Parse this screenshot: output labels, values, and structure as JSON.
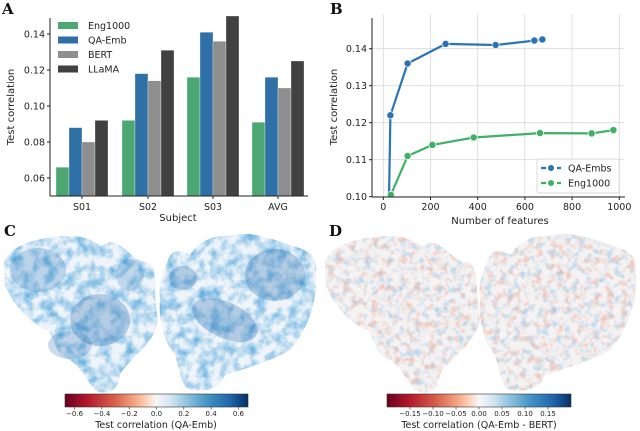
{
  "panels": {
    "A": {
      "letter": "A"
    },
    "B": {
      "letter": "B"
    },
    "C": {
      "letter": "C"
    },
    "D": {
      "letter": "D"
    }
  },
  "chart_data": [
    {
      "id": "A",
      "type": "bar",
      "title": "",
      "xlabel": "Subject",
      "ylabel": "Test correlation",
      "categories": [
        "S01",
        "S02",
        "S03",
        "AVG"
      ],
      "ylim": [
        0.05,
        0.15
      ],
      "yticks": [
        0.06,
        0.08,
        0.1,
        0.12,
        0.14
      ],
      "ytick_labels": [
        "0.06",
        "0.08",
        "0.10",
        "0.12",
        "0.14"
      ],
      "legend_position": "top-left",
      "grid": false,
      "series": [
        {
          "name": "Eng1000",
          "color": "#4ca773",
          "values": [
            0.066,
            0.092,
            0.116,
            0.091
          ]
        },
        {
          "name": "QA-Emb",
          "color": "#2f70a6",
          "values": [
            0.088,
            0.118,
            0.141,
            0.116
          ]
        },
        {
          "name": "BERT",
          "color": "#8e8e8e",
          "values": [
            0.08,
            0.114,
            0.136,
            0.11
          ]
        },
        {
          "name": "LLaMA",
          "color": "#414141",
          "values": [
            0.092,
            0.131,
            0.15,
            0.125
          ]
        }
      ]
    },
    {
      "id": "B",
      "type": "line",
      "title": "",
      "xlabel": "Number of features",
      "ylabel": "Test correlation",
      "xlim": [
        -45,
        1015
      ],
      "ylim": [
        0.1,
        0.148
      ],
      "xticks": [
        0,
        200,
        400,
        600,
        800,
        1000
      ],
      "xtick_labels": [
        "0",
        "200",
        "400",
        "600",
        "800",
        "1000"
      ],
      "yticks": [
        0.1,
        0.11,
        0.12,
        0.13,
        0.14
      ],
      "ytick_labels": [
        "0.10",
        "0.11",
        "0.12",
        "0.13",
        "0.14"
      ],
      "legend_position": "bottom-right",
      "grid": true,
      "series": [
        {
          "name": "QA-Embs",
          "color": "#2a74b5",
          "x": [
            24,
            30,
            103,
            264,
            476,
            640,
            674
          ],
          "y": [
            0.0995,
            0.122,
            0.136,
            0.1413,
            0.141,
            0.1422,
            0.1425
          ],
          "marker_visible": [
            false,
            true,
            true,
            true,
            true,
            true,
            true
          ]
        },
        {
          "name": "Eng1000",
          "color": "#3fb166",
          "x": [
            32,
            103,
            208,
            383,
            664,
            883,
            975
          ],
          "y": [
            0.1005,
            0.111,
            0.114,
            0.116,
            0.1172,
            0.1171,
            0.118
          ],
          "marker_visible": [
            true,
            true,
            true,
            true,
            true,
            true,
            true
          ]
        }
      ]
    },
    {
      "id": "C",
      "type": "heatmap",
      "title": "",
      "description": "flatmap of cortical test correlation",
      "colorbar": {
        "label": "Test correlation (QA-Emb)",
        "range": [
          -0.67,
          0.67
        ],
        "ticks": [
          -0.6,
          -0.4,
          -0.2,
          0.0,
          0.2,
          0.4,
          0.6
        ],
        "tick_labels": [
          "−0.6",
          "−0.4",
          "−0.2",
          "0.0",
          "0.2",
          "0.4",
          "0.6"
        ],
        "colormap": "RdBu"
      }
    },
    {
      "id": "D",
      "type": "heatmap",
      "title": "",
      "description": "flatmap of test correlation difference",
      "colorbar": {
        "label": "Test correlation (QA-Emb - BERT)",
        "range": [
          -0.2,
          0.2
        ],
        "ticks": [
          -0.15,
          -0.1,
          -0.05,
          0.0,
          0.05,
          0.1,
          0.15
        ],
        "tick_labels": [
          "−0.15",
          "−0.10",
          "−0.05",
          "0.00",
          "0.05",
          "0.10",
          "0.15"
        ],
        "colormap": "RdBu"
      }
    }
  ]
}
